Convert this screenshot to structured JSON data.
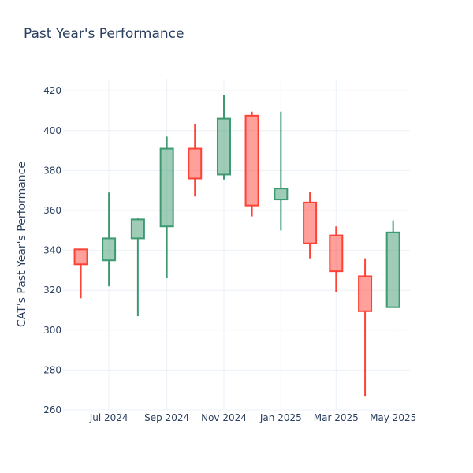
{
  "chart_data": {
    "type": "candlestick",
    "title": "Past Year's Performance",
    "ylabel": "CAT's Past Year's Performance",
    "xlabel": "",
    "ylim": [
      260,
      426
    ],
    "yticks": [
      260,
      280,
      300,
      320,
      340,
      360,
      380,
      400,
      420
    ],
    "xlim": [
      "2024-05-13",
      "2025-05-19"
    ],
    "xticks": [
      {
        "label": "Jul 2024",
        "date": "2024-07-01"
      },
      {
        "label": "Sep 2024",
        "date": "2024-09-01"
      },
      {
        "label": "Nov 2024",
        "date": "2024-11-01"
      },
      {
        "label": "Jan 2025",
        "date": "2025-01-01"
      },
      {
        "label": "Mar 2025",
        "date": "2025-03-01"
      },
      {
        "label": "May 2025",
        "date": "2025-05-01"
      }
    ],
    "colors": {
      "increasing": "#3d9970",
      "decreasing": "#ff4136",
      "grid": "#ebf0f8",
      "text": "#2a3f5f"
    },
    "candles": [
      {
        "date": "2024-06-01",
        "open": 340.5,
        "high": 340.5,
        "low": 316,
        "close": 333
      },
      {
        "date": "2024-07-01",
        "open": 335,
        "high": 369,
        "low": 322,
        "close": 346
      },
      {
        "date": "2024-08-01",
        "open": 346,
        "high": 356,
        "low": 307,
        "close": 355.5
      },
      {
        "date": "2024-09-01",
        "open": 352,
        "high": 397,
        "low": 326,
        "close": 391
      },
      {
        "date": "2024-10-01",
        "open": 391,
        "high": 403.5,
        "low": 367,
        "close": 376
      },
      {
        "date": "2024-11-01",
        "open": 378,
        "high": 418,
        "low": 375.5,
        "close": 406
      },
      {
        "date": "2024-12-01",
        "open": 407.5,
        "high": 409.5,
        "low": 357,
        "close": 362.5
      },
      {
        "date": "2025-01-01",
        "open": 365.5,
        "high": 409.5,
        "low": 350,
        "close": 371
      },
      {
        "date": "2025-02-01",
        "open": 364,
        "high": 369.5,
        "low": 336,
        "close": 343.5
      },
      {
        "date": "2025-03-01",
        "open": 347.5,
        "high": 352,
        "low": 319,
        "close": 329.5
      },
      {
        "date": "2025-04-01",
        "open": 327,
        "high": 336,
        "low": 267,
        "close": 309.5
      },
      {
        "date": "2025-05-01",
        "open": 311.5,
        "high": 355,
        "low": 311.5,
        "close": 349
      }
    ]
  }
}
